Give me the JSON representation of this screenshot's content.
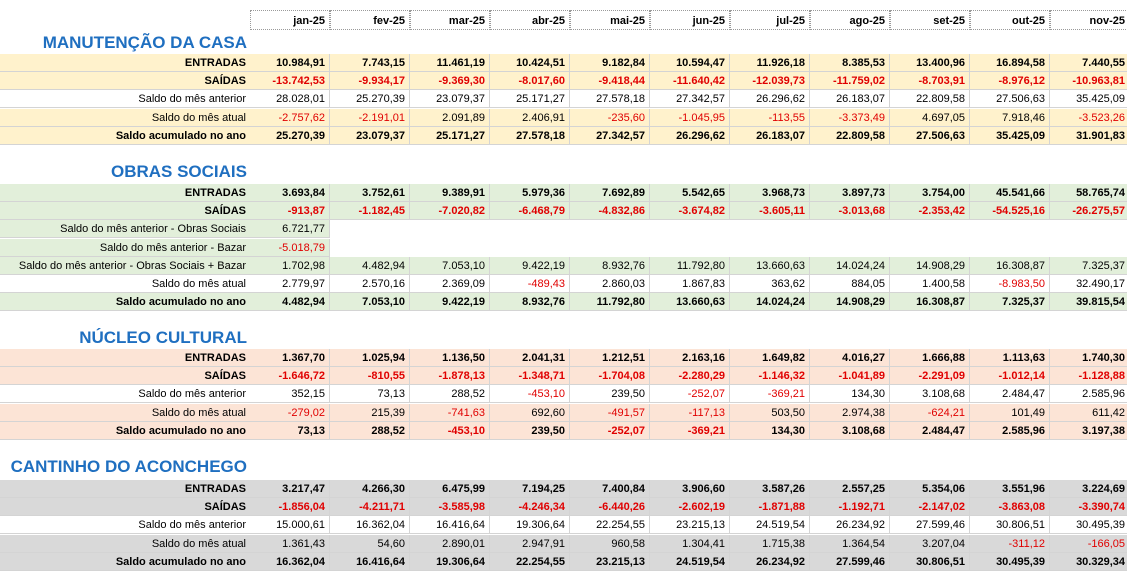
{
  "columns": [
    "jan-25",
    "fev-25",
    "mar-25",
    "abr-25",
    "mai-25",
    "jun-25",
    "jul-25",
    "ago-25",
    "set-25",
    "out-25",
    "nov-25"
  ],
  "sections": [
    {
      "title": "MANUTENÇÃO DA CASA",
      "rows": [
        {
          "label": "ENTRADAS",
          "values": [
            "10.984,91",
            "7.743,15",
            "11.461,19",
            "10.424,51",
            "9.182,84",
            "10.594,47",
            "11.926,18",
            "8.385,53",
            "13.400,96",
            "16.894,58",
            "7.440,55"
          ]
        },
        {
          "label": "SAÍDAS",
          "values": [
            "-13.742,53",
            "-9.934,17",
            "-9.369,30",
            "-8.017,60",
            "-9.418,44",
            "-11.640,42",
            "-12.039,73",
            "-11.759,02",
            "-8.703,91",
            "-8.976,12",
            "-10.963,81"
          ]
        },
        {
          "label": "Saldo do mês anterior",
          "values": [
            "28.028,01",
            "25.270,39",
            "23.079,37",
            "25.171,27",
            "27.578,18",
            "27.342,57",
            "26.296,62",
            "26.183,07",
            "22.809,58",
            "27.506,63",
            "35.425,09"
          ]
        },
        {
          "label": "Saldo do mês atual",
          "values": [
            "-2.757,62",
            "-2.191,01",
            "2.091,89",
            "2.406,91",
            "-235,60",
            "-1.045,95",
            "-113,55",
            "-3.373,49",
            "4.697,05",
            "7.918,46",
            "-3.523,26"
          ]
        },
        {
          "label": "Saldo acumulado no ano",
          "values": [
            "25.270,39",
            "23.079,37",
            "25.171,27",
            "27.578,18",
            "27.342,57",
            "26.296,62",
            "26.183,07",
            "22.809,58",
            "27.506,63",
            "35.425,09",
            "31.901,83"
          ]
        }
      ]
    },
    {
      "title": "OBRAS SOCIAIS",
      "rows": [
        {
          "label": "ENTRADAS",
          "values": [
            "3.693,84",
            "3.752,61",
            "9.389,91",
            "5.979,36",
            "7.692,89",
            "5.542,65",
            "3.968,73",
            "3.897,73",
            "3.754,00",
            "45.541,66",
            "58.765,74"
          ]
        },
        {
          "label": "SAÍDAS",
          "values": [
            "-913,87",
            "-1.182,45",
            "-7.020,82",
            "-6.468,79",
            "-4.832,86",
            "-3.674,82",
            "-3.605,11",
            "-3.013,68",
            "-2.353,42",
            "-54.525,16",
            "-26.275,57"
          ]
        },
        {
          "label": "Saldo do mês anterior - Obras Sociais",
          "values": [
            "6.721,77"
          ]
        },
        {
          "label": "Saldo do mês anterior - Bazar",
          "values": [
            "-5.018,79"
          ]
        },
        {
          "label": "Saldo do mês anterior - Obras Sociais + Bazar",
          "values": [
            "1.702,98",
            "4.482,94",
            "7.053,10",
            "9.422,19",
            "8.932,76",
            "11.792,80",
            "13.660,63",
            "14.024,24",
            "14.908,29",
            "16.308,87",
            "7.325,37"
          ]
        },
        {
          "label": "Saldo do mês atual",
          "values": [
            "2.779,97",
            "2.570,16",
            "2.369,09",
            "-489,43",
            "2.860,03",
            "1.867,83",
            "363,62",
            "884,05",
            "1.400,58",
            "-8.983,50",
            "32.490,17"
          ]
        },
        {
          "label": "Saldo acumulado no ano",
          "values": [
            "4.482,94",
            "7.053,10",
            "9.422,19",
            "8.932,76",
            "11.792,80",
            "13.660,63",
            "14.024,24",
            "14.908,29",
            "16.308,87",
            "7.325,37",
            "39.815,54"
          ]
        }
      ]
    },
    {
      "title": "NÚCLEO CULTURAL",
      "rows": [
        {
          "label": "ENTRADAS",
          "values": [
            "1.367,70",
            "1.025,94",
            "1.136,50",
            "2.041,31",
            "1.212,51",
            "2.163,16",
            "1.649,82",
            "4.016,27",
            "1.666,88",
            "1.113,63",
            "1.740,30"
          ]
        },
        {
          "label": "SAÍDAS",
          "values": [
            "-1.646,72",
            "-810,55",
            "-1.878,13",
            "-1.348,71",
            "-1.704,08",
            "-2.280,29",
            "-1.146,32",
            "-1.041,89",
            "-2.291,09",
            "-1.012,14",
            "-1.128,88"
          ]
        },
        {
          "label": "Saldo do mês anterior",
          "values": [
            "352,15",
            "73,13",
            "288,52",
            "-453,10",
            "239,50",
            "-252,07",
            "-369,21",
            "134,30",
            "3.108,68",
            "2.484,47",
            "2.585,96"
          ]
        },
        {
          "label": "Saldo do mês atual",
          "values": [
            "-279,02",
            "215,39",
            "-741,63",
            "692,60",
            "-491,57",
            "-117,13",
            "503,50",
            "2.974,38",
            "-624,21",
            "101,49",
            "611,42"
          ]
        },
        {
          "label": "Saldo acumulado no ano",
          "values": [
            "73,13",
            "288,52",
            "-453,10",
            "239,50",
            "-252,07",
            "-369,21",
            "134,30",
            "3.108,68",
            "2.484,47",
            "2.585,96",
            "3.197,38"
          ]
        }
      ]
    },
    {
      "title": "CANTINHO DO ACONCHEGO",
      "rows": [
        {
          "label": "ENTRADAS",
          "values": [
            "3.217,47",
            "4.266,30",
            "6.475,99",
            "7.194,25",
            "7.400,84",
            "3.906,60",
            "3.587,26",
            "2.557,25",
            "5.354,06",
            "3.551,96",
            "3.224,69"
          ]
        },
        {
          "label": "SAÍDAS",
          "values": [
            "-1.856,04",
            "-4.211,71",
            "-3.585,98",
            "-4.246,34",
            "-6.440,26",
            "-2.602,19",
            "-1.871,88",
            "-1.192,71",
            "-2.147,02",
            "-3.863,08",
            "-3.390,74"
          ]
        },
        {
          "label": "Saldo do mês anterior",
          "values": [
            "15.000,61",
            "16.362,04",
            "16.416,64",
            "19.306,64",
            "22.254,55",
            "23.215,13",
            "24.519,54",
            "26.234,92",
            "27.599,46",
            "30.806,51",
            "30.495,39"
          ]
        },
        {
          "label": "Saldo do mês atual",
          "values": [
            "1.361,43",
            "54,60",
            "2.890,01",
            "2.947,91",
            "960,58",
            "1.304,41",
            "1.715,38",
            "1.364,54",
            "3.207,04",
            "-311,12",
            "-166,05"
          ]
        },
        {
          "label": "Saldo acumulado no ano",
          "values": [
            "16.362,04",
            "16.416,64",
            "19.306,64",
            "22.254,55",
            "23.215,13",
            "24.519,54",
            "26.234,92",
            "27.599,46",
            "30.806,51",
            "30.495,39",
            "30.329,34"
          ]
        }
      ]
    }
  ]
}
